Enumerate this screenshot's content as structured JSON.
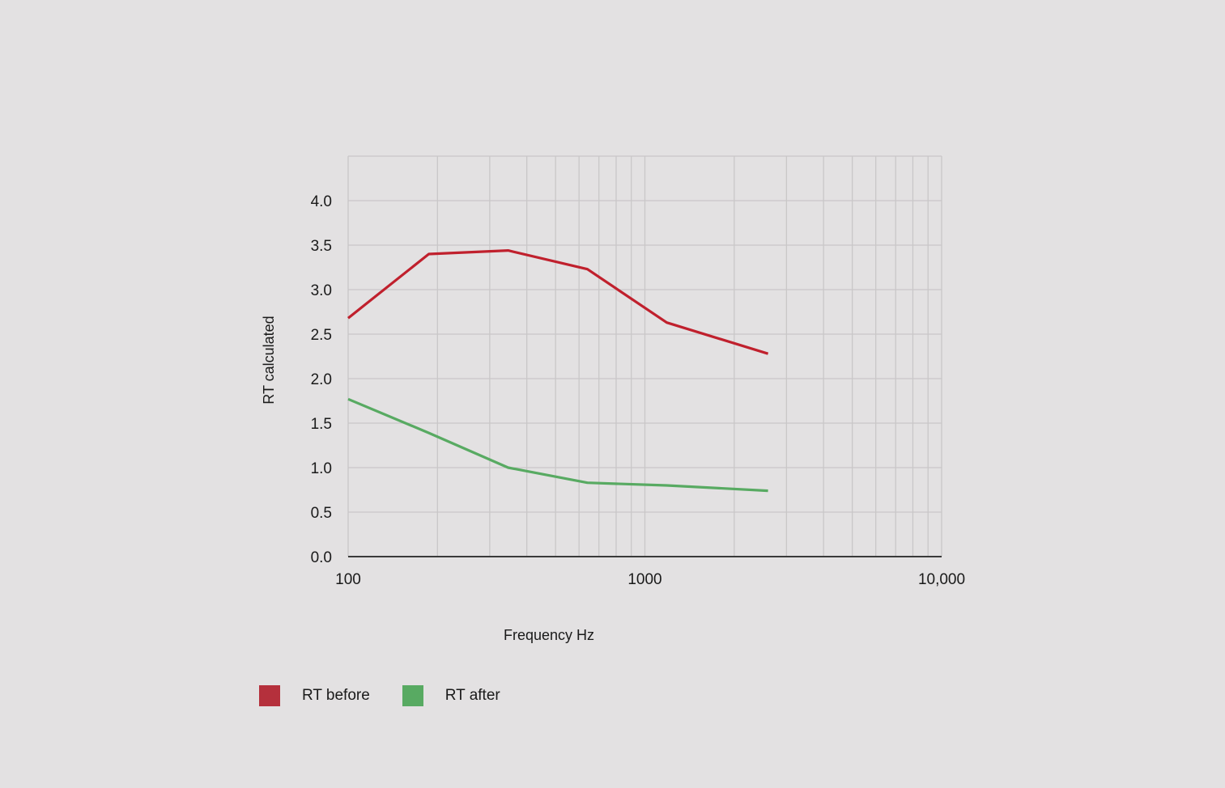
{
  "chart_data": {
    "type": "line",
    "xlabel": "Frequency Hz",
    "ylabel": "RT calculated",
    "x_scale": "log",
    "xlim": [
      100,
      10000
    ],
    "ylim": [
      0,
      4.5
    ],
    "x_ticks": [
      {
        "value": 100,
        "label": "100"
      },
      {
        "value": 1000,
        "label": "1000"
      },
      {
        "value": 10000,
        "label": "10,000"
      }
    ],
    "y_ticks": [
      {
        "value": 0,
        "label": "0.0"
      },
      {
        "value": 0.5,
        "label": "0.5"
      },
      {
        "value": 1,
        "label": "1.0"
      },
      {
        "value": 1.5,
        "label": "1.5"
      },
      {
        "value": 2,
        "label": "2.0"
      },
      {
        "value": 2.5,
        "label": "2.5"
      },
      {
        "value": 3,
        "label": "3.0"
      },
      {
        "value": 3.5,
        "label": "3.5"
      },
      {
        "value": 4,
        "label": "4.0"
      }
    ],
    "grid": true,
    "legend_position": "bottom-left",
    "x": [
      100,
      187,
      346,
      640,
      1185,
      2600
    ],
    "series": [
      {
        "name": "RT before",
        "color": "#c0202d",
        "legend_color": "#b5303c",
        "values": [
          2.68,
          3.4,
          3.44,
          3.23,
          2.63,
          2.28
        ]
      },
      {
        "name": "RT after",
        "color": "#58aa62",
        "legend_color": "#58aa62",
        "values": [
          1.77,
          1.39,
          1.0,
          0.83,
          0.8,
          0.74
        ]
      }
    ]
  }
}
